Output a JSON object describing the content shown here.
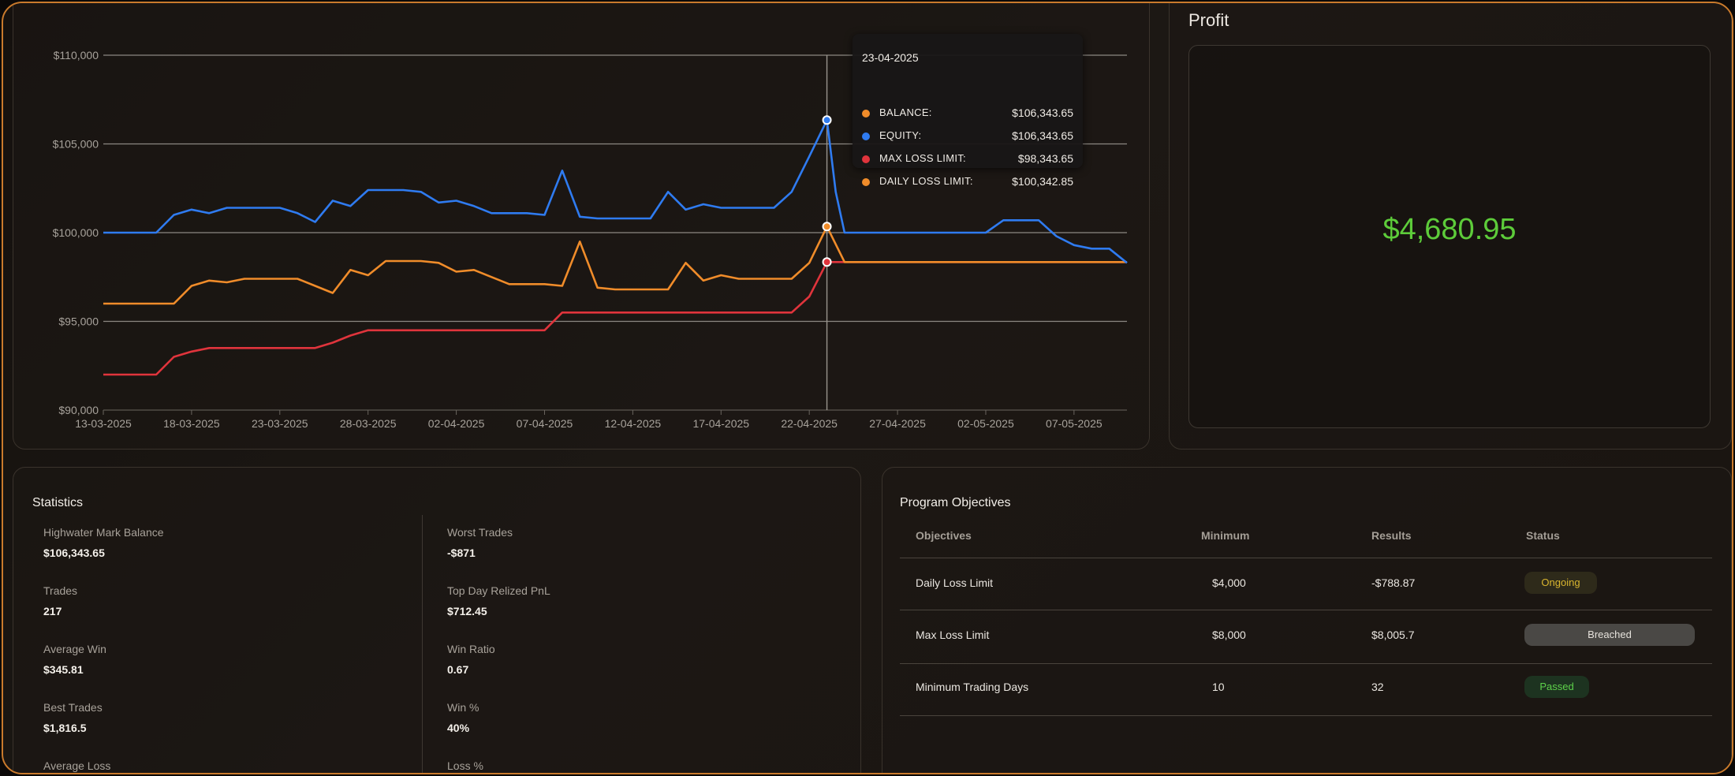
{
  "chart_panel": {
    "tooltip": {
      "date": "23-04-2025",
      "rows": [
        {
          "label": "BALANCE:",
          "value": "$106,343.65",
          "color": "#f08c2a"
        },
        {
          "label": "EQUITY:",
          "value": "$106,343.65",
          "color": "#2f7bf0"
        },
        {
          "label": "MAX LOSS LIMIT:",
          "value": "$98,343.65",
          "color": "#e0343c"
        },
        {
          "label": "DAILY LOSS LIMIT:",
          "value": "$100,342.85",
          "color": "#f08c2a"
        }
      ]
    }
  },
  "chart_data": {
    "type": "line",
    "title": "",
    "xlabel": "",
    "ylabel": "",
    "ylim": [
      90000,
      110000
    ],
    "y_ticks": [
      "$90,000",
      "$95,000",
      "$100,000",
      "$105,000",
      "$110,000"
    ],
    "x_ticks": [
      "13-03-2025",
      "18-03-2025",
      "23-03-2025",
      "28-03-2025",
      "02-04-2025",
      "07-04-2025",
      "12-04-2025",
      "17-04-2025",
      "22-04-2025",
      "27-04-2025",
      "02-05-2025",
      "07-05-2025"
    ],
    "x_start": "2025-03-13",
    "highlight_day": 41,
    "grid": true,
    "series": [
      {
        "color": "#2f7bf0",
        "points": [
          [
            0,
            100000
          ],
          [
            3,
            100000
          ],
          [
            4,
            101000
          ],
          [
            5,
            101300
          ],
          [
            6,
            101100
          ],
          [
            7,
            101400
          ],
          [
            8,
            101400
          ],
          [
            9,
            101400
          ],
          [
            10,
            101400
          ],
          [
            11,
            101100
          ],
          [
            12,
            100600
          ],
          [
            13,
            101800
          ],
          [
            14,
            101500
          ],
          [
            15,
            102400
          ],
          [
            16,
            102400
          ],
          [
            17,
            102400
          ],
          [
            18,
            102300
          ],
          [
            19,
            101700
          ],
          [
            20,
            101800
          ],
          [
            21,
            101500
          ],
          [
            22,
            101100
          ],
          [
            23,
            101100
          ],
          [
            24,
            101100
          ],
          [
            25,
            101000
          ],
          [
            26,
            103500
          ],
          [
            27,
            100900
          ],
          [
            28,
            100800
          ],
          [
            29,
            100800
          ],
          [
            30,
            100800
          ],
          [
            31,
            100800
          ],
          [
            32,
            102300
          ],
          [
            33,
            101300
          ],
          [
            34,
            101600
          ],
          [
            35,
            101400
          ],
          [
            36,
            101400
          ],
          [
            37,
            101400
          ],
          [
            38,
            101400
          ],
          [
            39,
            102300
          ],
          [
            40,
            104300
          ],
          [
            41,
            106343.65
          ],
          [
            41.5,
            102300
          ],
          [
            42,
            100000
          ],
          [
            43,
            100000
          ],
          [
            50,
            100000
          ],
          [
            51,
            100700
          ],
          [
            52,
            100700
          ],
          [
            53,
            100700
          ],
          [
            54,
            99800
          ],
          [
            55,
            99300
          ],
          [
            56,
            99100
          ],
          [
            57,
            99100
          ],
          [
            58,
            98300
          ]
        ]
      },
      {
        "color": "#f08c2a",
        "points": [
          [
            0,
            96000
          ],
          [
            4,
            96000
          ],
          [
            5,
            97000
          ],
          [
            6,
            97300
          ],
          [
            7,
            97200
          ],
          [
            8,
            97400
          ],
          [
            9,
            97400
          ],
          [
            10,
            97400
          ],
          [
            11,
            97400
          ],
          [
            12,
            97000
          ],
          [
            13,
            96600
          ],
          [
            14,
            97900
          ],
          [
            15,
            97600
          ],
          [
            16,
            98400
          ],
          [
            17,
            98400
          ],
          [
            18,
            98400
          ],
          [
            19,
            98300
          ],
          [
            20,
            97800
          ],
          [
            21,
            97900
          ],
          [
            22,
            97500
          ],
          [
            23,
            97100
          ],
          [
            24,
            97100
          ],
          [
            25,
            97100
          ],
          [
            26,
            97000
          ],
          [
            27,
            99500
          ],
          [
            28,
            96900
          ],
          [
            29,
            96800
          ],
          [
            30,
            96800
          ],
          [
            31,
            96800
          ],
          [
            32,
            96800
          ],
          [
            33,
            98300
          ],
          [
            34,
            97300
          ],
          [
            35,
            97600
          ],
          [
            36,
            97400
          ],
          [
            37,
            97400
          ],
          [
            38,
            97400
          ],
          [
            39,
            97400
          ],
          [
            40,
            98300
          ],
          [
            41,
            100342.85
          ],
          [
            42,
            98343.65
          ],
          [
            58,
            98343.65
          ]
        ]
      },
      {
        "color": "#e0343c",
        "points": [
          [
            0,
            92000
          ],
          [
            3,
            92000
          ],
          [
            4,
            93000
          ],
          [
            5,
            93300
          ],
          [
            6,
            93500
          ],
          [
            7,
            93500
          ],
          [
            8,
            93500
          ],
          [
            9,
            93500
          ],
          [
            10,
            93500
          ],
          [
            11,
            93500
          ],
          [
            12,
            93500
          ],
          [
            13,
            93800
          ],
          [
            14,
            94200
          ],
          [
            15,
            94500
          ],
          [
            16,
            94500
          ],
          [
            17,
            94500
          ],
          [
            18,
            94500
          ],
          [
            19,
            94500
          ],
          [
            20,
            94500
          ],
          [
            21,
            94500
          ],
          [
            22,
            94500
          ],
          [
            23,
            94500
          ],
          [
            24,
            94500
          ],
          [
            25,
            94500
          ],
          [
            26,
            95500
          ],
          [
            27,
            95500
          ],
          [
            28,
            95500
          ],
          [
            29,
            95500
          ],
          [
            30,
            95500
          ],
          [
            31,
            95500
          ],
          [
            32,
            95500
          ],
          [
            33,
            95500
          ],
          [
            34,
            95500
          ],
          [
            35,
            95500
          ],
          [
            36,
            95500
          ],
          [
            37,
            95500
          ],
          [
            38,
            95500
          ],
          [
            39,
            95500
          ],
          [
            40,
            96400
          ],
          [
            41,
            98343.65
          ],
          [
            42,
            98343.65
          ],
          [
            58,
            98343.65
          ]
        ]
      }
    ]
  },
  "profit": {
    "title": "Profit",
    "value": "$4,680.95",
    "value_color": "#5dcc3a"
  },
  "statistics": {
    "title": "Statistics",
    "left": [
      {
        "label": "Highwater Mark Balance",
        "value": "$106,343.65"
      },
      {
        "label": "Trades",
        "value": "217"
      },
      {
        "label": "Average Win",
        "value": "$345.81"
      },
      {
        "label": "Best Trades",
        "value": "$1,816.5"
      },
      {
        "label": "Average Loss",
        "value": ""
      }
    ],
    "right": [
      {
        "label": "Worst Trades",
        "value": "-$871"
      },
      {
        "label": "Top Day Relized PnL",
        "value": "$712.45"
      },
      {
        "label": "Win Ratio",
        "value": "0.67"
      },
      {
        "label": "Win %",
        "value": "40%"
      },
      {
        "label": "Loss %",
        "value": ""
      }
    ]
  },
  "objectives": {
    "title": "Program Objectives",
    "headers": [
      "Objectives",
      "Minimum",
      "Results",
      "Status"
    ],
    "rows": [
      {
        "objective": "Daily Loss Limit",
        "minimum": "$4,000",
        "result": "-$788.87",
        "status": "Ongoing"
      },
      {
        "objective": "Max Loss Limit",
        "minimum": "$8,000",
        "result": "$8,005.7",
        "status": "Breached"
      },
      {
        "objective": "Minimum Trading Days",
        "minimum": "10",
        "result": "32",
        "status": "Passed"
      }
    ]
  }
}
